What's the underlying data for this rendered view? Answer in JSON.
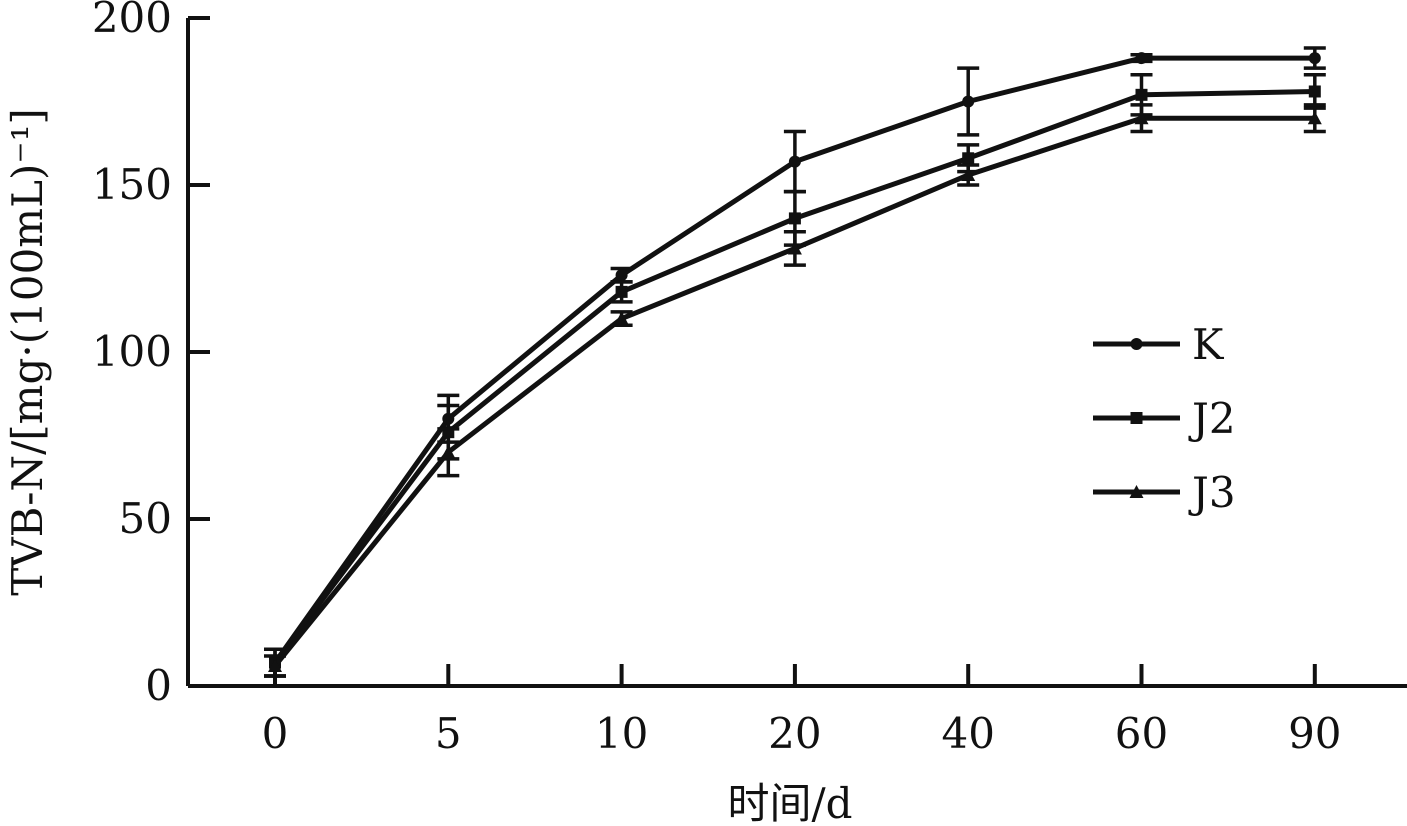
{
  "chart_data": {
    "type": "line",
    "title": "",
    "xlabel": "时间/d",
    "ylabel": "TVB-N/[mg·(100mL)⁻¹]",
    "categories": [
      "0",
      "5",
      "10",
      "20",
      "40",
      "60",
      "90"
    ],
    "ylim": [
      0,
      200
    ],
    "yticks": [
      "0",
      "50",
      "100",
      "150",
      "200"
    ],
    "grid": false,
    "legend_position": "right-middle",
    "series": [
      {
        "name": "K",
        "marker": "circle",
        "values": [
          7,
          80,
          123,
          157,
          175,
          188,
          188
        ],
        "errors": [
          4,
          7,
          2,
          9,
          10,
          1,
          3
        ]
      },
      {
        "name": "J2",
        "marker": "square",
        "values": [
          7,
          76,
          118,
          140,
          158,
          177,
          178
        ],
        "errors": [
          4,
          8,
          3,
          8,
          4,
          6,
          5
        ]
      },
      {
        "name": "J3",
        "marker": "triangle",
        "values": [
          6,
          70,
          110,
          131,
          153,
          170,
          170
        ],
        "errors": [
          3,
          7,
          2,
          5,
          3,
          4,
          4
        ]
      }
    ],
    "colors": {
      "line": "#111111",
      "background": "#ffffff"
    }
  }
}
